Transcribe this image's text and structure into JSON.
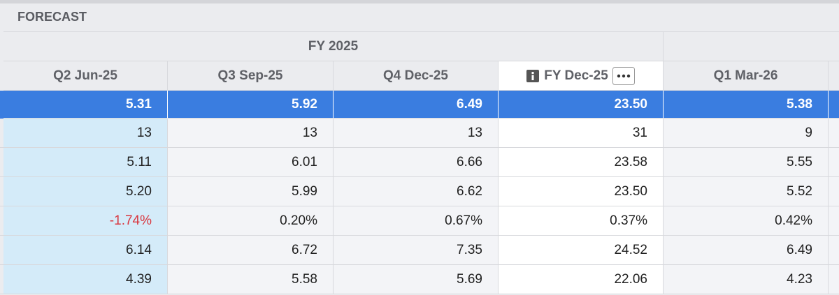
{
  "header": {
    "title": "FORECAST"
  },
  "table": {
    "group_header": "FY 2025",
    "columns": [
      "Q2 Jun-25",
      "Q3 Sep-25",
      "Q4 Dec-25",
      "FY Dec-25",
      "Q1 Mar-26"
    ],
    "rows": [
      [
        "5.31",
        "5.92",
        "6.49",
        "23.50",
        "5.38"
      ],
      [
        "13",
        "13",
        "13",
        "31",
        "9"
      ],
      [
        "5.11",
        "6.01",
        "6.66",
        "23.58",
        "5.55"
      ],
      [
        "5.20",
        "5.99",
        "6.62",
        "23.50",
        "5.52"
      ],
      [
        "-1.74%",
        "0.20%",
        "0.67%",
        "0.37%",
        "0.42%"
      ],
      [
        "6.14",
        "6.72",
        "7.35",
        "24.52",
        "6.49"
      ],
      [
        "4.39",
        "5.58",
        "5.69",
        "22.06",
        "4.23"
      ]
    ]
  }
}
